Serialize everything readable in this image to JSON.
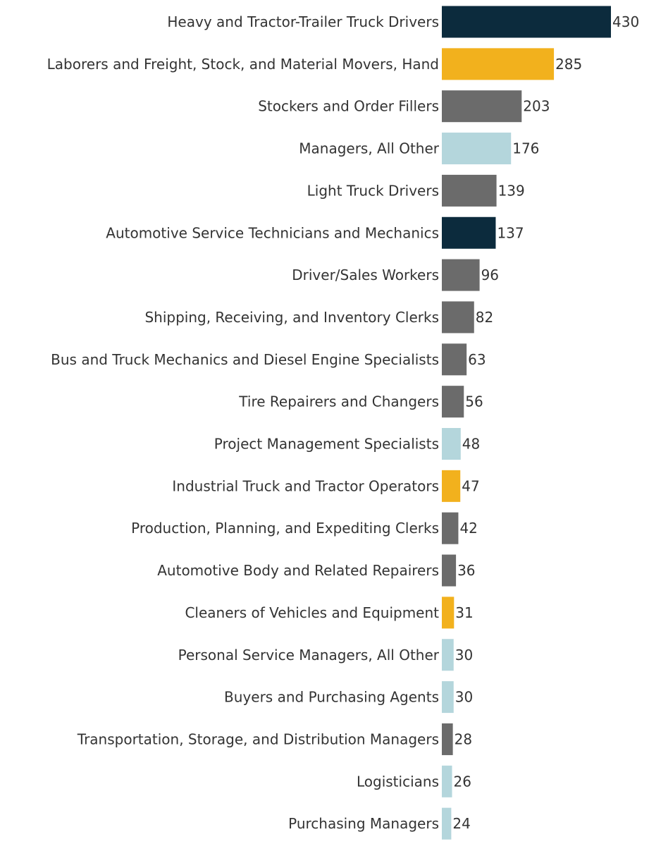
{
  "chart_data": {
    "type": "bar",
    "orientation": "horizontal",
    "title": "",
    "xlabel": "",
    "ylabel": "",
    "grid": false,
    "xlim": [
      0,
      430
    ],
    "palette": {
      "navy": "#0c2b3d",
      "gold": "#f2b11d",
      "gray": "#6b6b6b",
      "lightblue": "#b4d6dc"
    },
    "categories": [
      "Heavy and Tractor-Trailer Truck Drivers",
      "Laborers and Freight, Stock, and Material Movers, Hand",
      "Stockers and Order Fillers",
      "Managers, All Other",
      "Light Truck Drivers",
      "Automotive Service Technicians and Mechanics",
      "Driver/Sales Workers",
      "Shipping, Receiving, and Inventory Clerks",
      "Bus and Truck Mechanics and Diesel Engine Specialists",
      "Tire Repairers and Changers",
      "Project Management Specialists",
      "Industrial Truck and Tractor Operators",
      "Production, Planning, and Expediting Clerks",
      "Automotive Body and Related Repairers",
      "Cleaners of Vehicles and Equipment",
      "Personal Service Managers, All Other",
      "Buyers and Purchasing Agents",
      "Transportation, Storage, and Distribution Managers",
      "Logisticians",
      "Purchasing Managers"
    ],
    "values": [
      430,
      285,
      203,
      176,
      139,
      137,
      96,
      82,
      63,
      56,
      48,
      47,
      42,
      36,
      31,
      30,
      30,
      28,
      26,
      24
    ],
    "colors": [
      "#0c2b3d",
      "#f2b11d",
      "#6b6b6b",
      "#b4d6dc",
      "#6b6b6b",
      "#0c2b3d",
      "#6b6b6b",
      "#6b6b6b",
      "#6b6b6b",
      "#6b6b6b",
      "#b4d6dc",
      "#f2b11d",
      "#6b6b6b",
      "#6b6b6b",
      "#f2b11d",
      "#b4d6dc",
      "#b4d6dc",
      "#6b6b6b",
      "#b4d6dc",
      "#b4d6dc"
    ]
  }
}
